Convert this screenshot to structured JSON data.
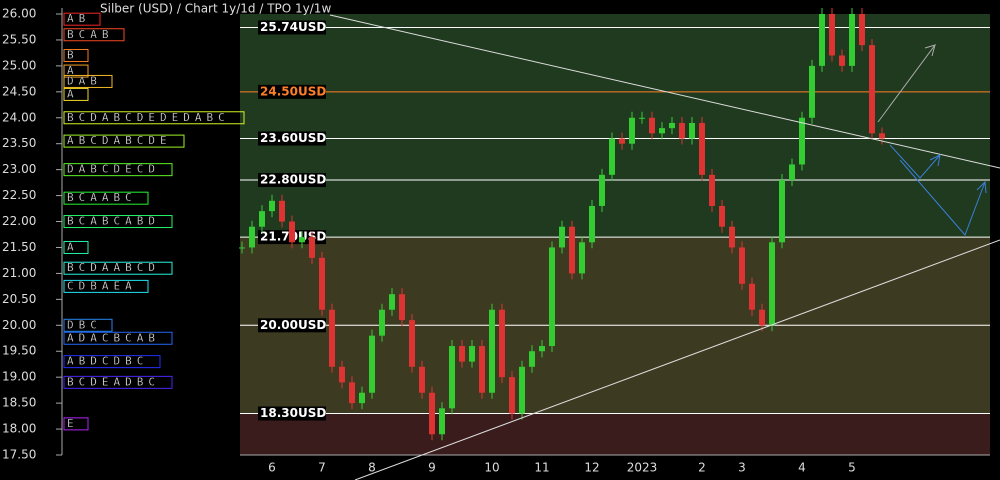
{
  "chart_data": {
    "type": "candlestick",
    "title": "Silber (USD) /  Chart 1y/1d / TPO 1y/1w",
    "ylim": [
      17.5,
      26.1
    ],
    "yticks": [
      {
        "value": 26,
        "label": "26.00"
      },
      {
        "value": 25.5,
        "label": "25.50"
      },
      {
        "value": 25,
        "label": "25.00"
      },
      {
        "value": 24.5,
        "label": "24.50"
      },
      {
        "value": 24,
        "label": "24.00"
      },
      {
        "value": 23.5,
        "label": "23.50"
      },
      {
        "value": 23,
        "label": "23.00"
      },
      {
        "value": 22.5,
        "label": "22.50"
      },
      {
        "value": 22,
        "label": "22.00"
      },
      {
        "value": 21.5,
        "label": "21.50"
      },
      {
        "value": 21,
        "label": "21.00"
      },
      {
        "value": 20.5,
        "label": "20.50"
      },
      {
        "value": 20,
        "label": "20.00"
      },
      {
        "value": 19.5,
        "label": "19.50"
      },
      {
        "value": 19,
        "label": "19.00"
      },
      {
        "value": 18.5,
        "label": "18.50"
      },
      {
        "value": 18,
        "label": "18.00"
      },
      {
        "value": 17.5,
        "label": "17.50"
      }
    ],
    "categories": [
      null,
      null,
      null,
      "6",
      null,
      null,
      null,
      null,
      "7",
      null,
      null,
      null,
      null,
      "8",
      null,
      null,
      null,
      null,
      null,
      "9",
      null,
      null,
      null,
      null,
      null,
      "10",
      null,
      null,
      null,
      null,
      "11",
      null,
      null,
      null,
      null,
      "12",
      null,
      null,
      null,
      null,
      "2023",
      null,
      null,
      null,
      null,
      null,
      "2",
      null,
      null,
      null,
      "3",
      null,
      null,
      null,
      null,
      null,
      "4",
      null,
      null,
      null,
      null,
      "5",
      null,
      null,
      null
    ],
    "series": [
      {
        "name": "Silber",
        "up_color": "#33cc33",
        "down_color": "#dd3333",
        "values": [
          21.5,
          21.9,
          22.2,
          22.4,
          22.0,
          21.6,
          21.7,
          21.3,
          20.3,
          19.2,
          18.9,
          18.5,
          18.7,
          19.8,
          20.3,
          20.6,
          20.1,
          19.2,
          18.7,
          17.9,
          18.4,
          19.6,
          19.3,
          19.6,
          18.7,
          20.3,
          19.0,
          18.3,
          19.2,
          19.5,
          19.6,
          21.5,
          21.9,
          21.0,
          21.6,
          22.3,
          22.9,
          23.6,
          23.5,
          24.0,
          24.0,
          23.7,
          23.8,
          23.9,
          23.6,
          23.9,
          22.9,
          22.3,
          21.9,
          21.5,
          20.8,
          20.3,
          20.0,
          21.6,
          22.8,
          23.1,
          24.0,
          25.0,
          26.0,
          25.2,
          25.0,
          26.0,
          25.4,
          23.7,
          23.6
        ]
      }
    ],
    "levels": [
      {
        "value": 25.74,
        "label": "25.74USD",
        "color": "#ffffff"
      },
      {
        "value": 24.5,
        "label": "24.50USD",
        "color": "#ff7f27"
      },
      {
        "value": 23.6,
        "label": "23.60USD",
        "color": "#ffffff"
      },
      {
        "value": 22.8,
        "label": "22.80USD",
        "color": "#ffffff"
      },
      {
        "value": 21.7,
        "label": "21.70USD",
        "color": "#ffffff"
      },
      {
        "value": 20.0,
        "label": "20.00USD",
        "color": "#ffffff"
      },
      {
        "value": 18.3,
        "label": "18.30USD",
        "color": "#ffffff"
      }
    ],
    "zone_colors": [
      "#1f3a1f",
      "#3d3a22",
      "#3a1c1c"
    ],
    "tpo": [
      {
        "price": 25.9,
        "letters": "AB"
      },
      {
        "price": 25.6,
        "letters": "BCAB"
      },
      {
        "price": 25.2,
        "letters": "B"
      },
      {
        "price": 24.9,
        "letters": "A"
      },
      {
        "price": 24.7,
        "letters": "DAB"
      },
      {
        "price": 24.45,
        "letters": "A"
      },
      {
        "price": 24.0,
        "letters": "BCDABCDEDEDABC"
      },
      {
        "price": 23.55,
        "letters": "ABCDABCDE"
      },
      {
        "price": 23.0,
        "letters": "DABCDECD"
      },
      {
        "price": 22.45,
        "letters": "BCAABC"
      },
      {
        "price": 22.0,
        "letters": "BCABCABD"
      },
      {
        "price": 21.5,
        "letters": "A"
      },
      {
        "price": 21.1,
        "letters": "BCDAABCD"
      },
      {
        "price": 20.75,
        "letters": "CDBAEA"
      },
      {
        "price": 20.0,
        "letters": "DBC"
      },
      {
        "price": 19.75,
        "letters": "ADACBCAB"
      },
      {
        "price": 19.3,
        "letters": "ABDCDBC"
      },
      {
        "price": 18.9,
        "letters": "BCDEADBC"
      },
      {
        "price": 18.1,
        "letters": "E"
      }
    ]
  }
}
